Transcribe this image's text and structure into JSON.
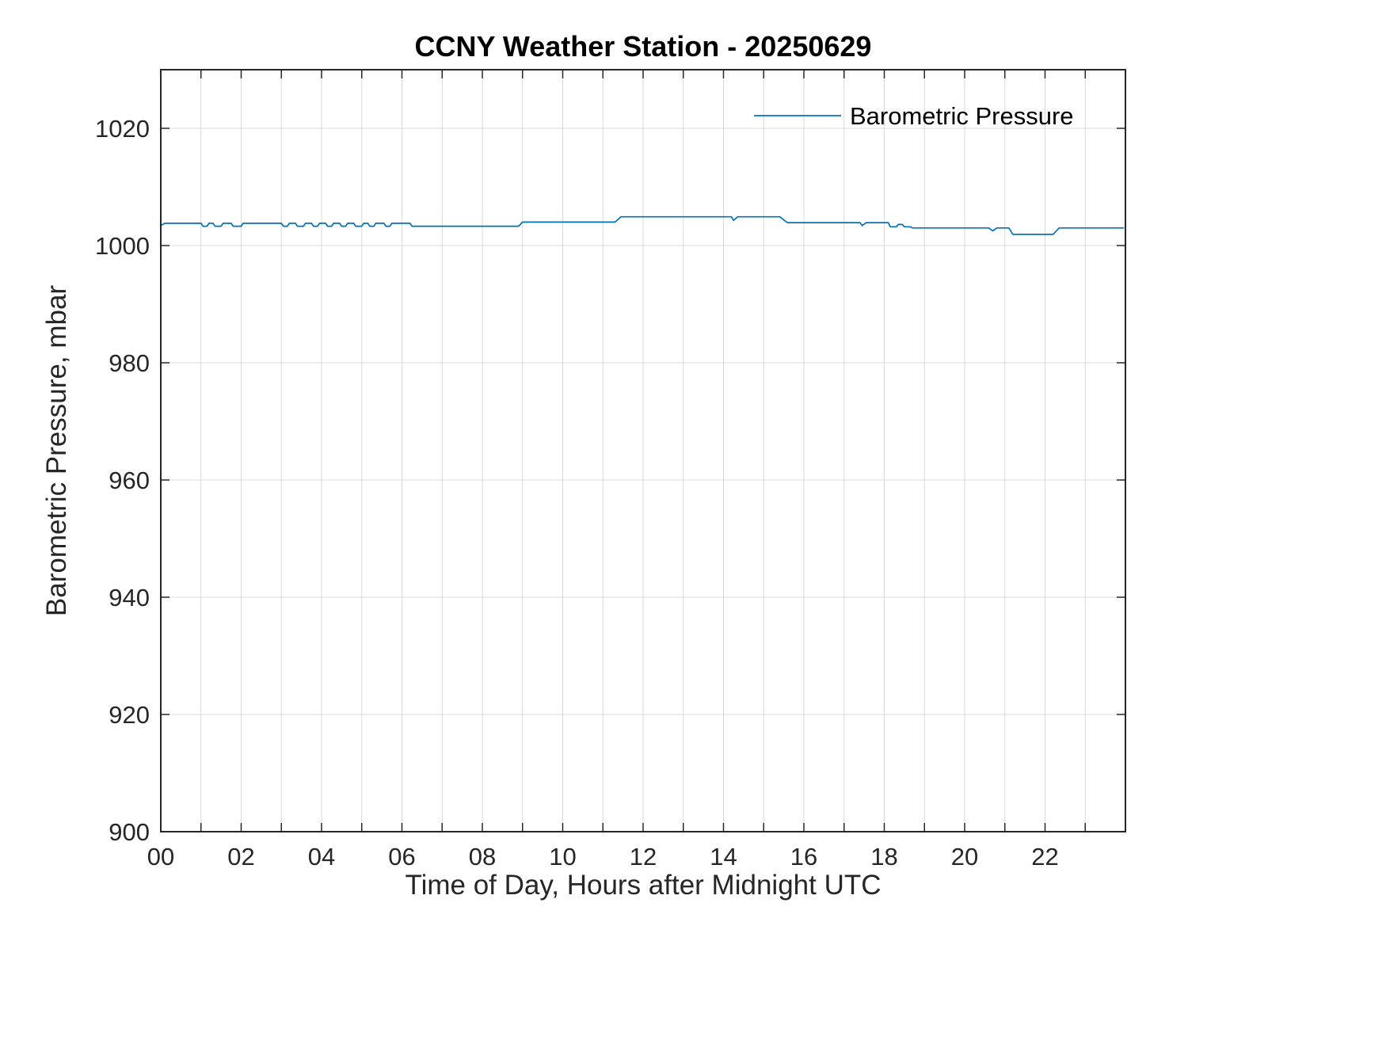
{
  "chart_data": {
    "type": "line",
    "title": "CCNY Weather Station - 20250629",
    "xlabel": "Time of Day, Hours after Midnight UTC",
    "ylabel": "Barometric Pressure, mbar",
    "xlim": [
      0,
      24
    ],
    "ylim": [
      900,
      1030
    ],
    "grid": true,
    "x_grid_step": 1,
    "xticks": [
      0,
      2,
      4,
      6,
      8,
      10,
      12,
      14,
      16,
      18,
      20,
      22
    ],
    "xtick_labels": [
      "00",
      "02",
      "04",
      "06",
      "08",
      "10",
      "12",
      "14",
      "16",
      "18",
      "20",
      "22"
    ],
    "yticks": [
      900,
      920,
      940,
      960,
      980,
      1000,
      1020
    ],
    "ytick_labels": [
      "900",
      "920",
      "940",
      "960",
      "980",
      "1000",
      "1020"
    ],
    "axis_color": "#262626",
    "grid_color": "#d9d9d9",
    "legend": {
      "position": "northeast",
      "entries": [
        "Barometric Pressure"
      ]
    },
    "series": [
      {
        "name": "Barometric Pressure",
        "color": "#0072BD",
        "points": [
          [
            0.0,
            1003.4
          ],
          [
            0.1,
            1003.8
          ],
          [
            1.0,
            1003.8
          ],
          [
            1.05,
            1003.3
          ],
          [
            1.15,
            1003.3
          ],
          [
            1.2,
            1003.8
          ],
          [
            1.3,
            1003.8
          ],
          [
            1.35,
            1003.3
          ],
          [
            1.5,
            1003.3
          ],
          [
            1.55,
            1003.8
          ],
          [
            1.75,
            1003.8
          ],
          [
            1.8,
            1003.3
          ],
          [
            2.0,
            1003.3
          ],
          [
            2.05,
            1003.8
          ],
          [
            3.0,
            1003.8
          ],
          [
            3.05,
            1003.3
          ],
          [
            3.15,
            1003.3
          ],
          [
            3.2,
            1003.8
          ],
          [
            3.35,
            1003.8
          ],
          [
            3.4,
            1003.3
          ],
          [
            3.55,
            1003.3
          ],
          [
            3.6,
            1003.8
          ],
          [
            3.75,
            1003.8
          ],
          [
            3.8,
            1003.3
          ],
          [
            3.9,
            1003.3
          ],
          [
            3.95,
            1003.8
          ],
          [
            4.1,
            1003.8
          ],
          [
            4.15,
            1003.3
          ],
          [
            4.25,
            1003.3
          ],
          [
            4.3,
            1003.8
          ],
          [
            4.45,
            1003.8
          ],
          [
            4.5,
            1003.3
          ],
          [
            4.6,
            1003.3
          ],
          [
            4.65,
            1003.8
          ],
          [
            4.8,
            1003.8
          ],
          [
            4.85,
            1003.3
          ],
          [
            5.0,
            1003.3
          ],
          [
            5.05,
            1003.8
          ],
          [
            5.15,
            1003.8
          ],
          [
            5.2,
            1003.3
          ],
          [
            5.3,
            1003.3
          ],
          [
            5.35,
            1003.8
          ],
          [
            5.55,
            1003.8
          ],
          [
            5.6,
            1003.3
          ],
          [
            5.7,
            1003.3
          ],
          [
            5.75,
            1003.8
          ],
          [
            6.2,
            1003.8
          ],
          [
            6.25,
            1003.3
          ],
          [
            8.9,
            1003.3
          ],
          [
            9.0,
            1004.0
          ],
          [
            11.3,
            1004.0
          ],
          [
            11.45,
            1004.9
          ],
          [
            14.2,
            1004.9
          ],
          [
            14.25,
            1004.3
          ],
          [
            14.35,
            1004.9
          ],
          [
            15.4,
            1004.9
          ],
          [
            15.55,
            1004.1
          ],
          [
            15.6,
            1003.9
          ],
          [
            17.4,
            1003.9
          ],
          [
            17.45,
            1003.4
          ],
          [
            17.55,
            1003.9
          ],
          [
            18.1,
            1003.9
          ],
          [
            18.15,
            1003.2
          ],
          [
            18.3,
            1003.2
          ],
          [
            18.35,
            1003.6
          ],
          [
            18.45,
            1003.6
          ],
          [
            18.5,
            1003.2
          ],
          [
            18.65,
            1003.2
          ],
          [
            18.7,
            1003.0
          ],
          [
            20.6,
            1003.0
          ],
          [
            20.7,
            1002.5
          ],
          [
            20.8,
            1003.0
          ],
          [
            21.1,
            1003.0
          ],
          [
            21.2,
            1001.9
          ],
          [
            22.2,
            1001.9
          ],
          [
            22.35,
            1003.0
          ],
          [
            23.95,
            1003.0
          ]
        ]
      }
    ]
  }
}
